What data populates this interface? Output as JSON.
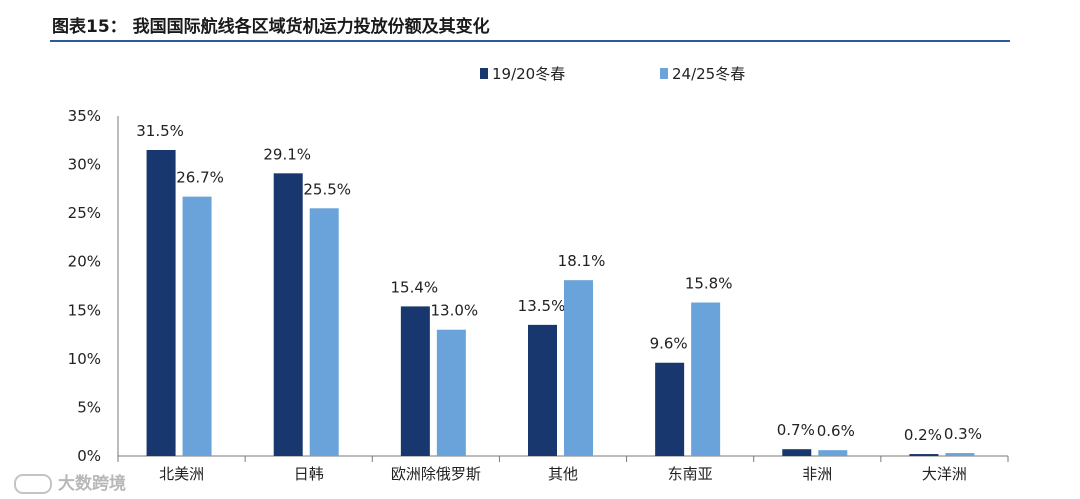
{
  "header": {
    "title": "图表15： 我国国际航线各区域货机运力投放份额及其变化"
  },
  "watermark": {
    "text": "大数跨境"
  },
  "chart_data": {
    "type": "bar",
    "categories": [
      "北美洲",
      "日韩",
      "欧洲除俄罗斯",
      "其他",
      "东南亚",
      "非洲",
      "大洋洲"
    ],
    "series": [
      {
        "name": "19/20冬春",
        "color": "#17376e",
        "values": [
          31.5,
          29.1,
          15.4,
          13.5,
          9.6,
          0.7,
          0.2
        ],
        "labels": [
          "31.5%",
          "29.1%",
          "15.4%",
          "13.5%",
          "9.6%",
          "0.7%",
          "0.2%"
        ]
      },
      {
        "name": "24/25冬春",
        "color": "#6aa3d9",
        "values": [
          26.7,
          25.5,
          13.0,
          18.1,
          15.8,
          0.6,
          0.3
        ],
        "labels": [
          "26.7%",
          "25.5%",
          "13.0%",
          "18.1%",
          "15.8%",
          "0.6%",
          "0.3%"
        ]
      }
    ],
    "ylim": [
      0,
      35
    ],
    "yticks": [
      "0%",
      "5%",
      "10%",
      "15%",
      "20%",
      "25%",
      "30%",
      "35%"
    ],
    "grid": false,
    "legend": "top-center"
  }
}
